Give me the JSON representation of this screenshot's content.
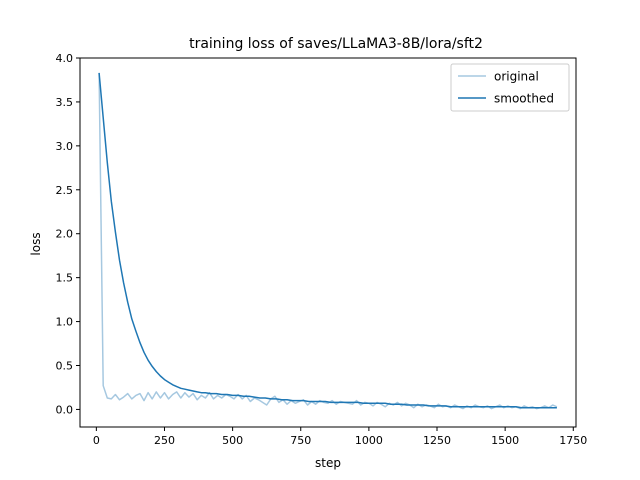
{
  "chart_data": {
    "type": "line",
    "title": "training loss of saves/LLaMA3-8B/lora/sft2",
    "xlabel": "step",
    "ylabel": "loss",
    "xlim": [
      -60,
      1760
    ],
    "ylim": [
      -0.2,
      4.0
    ],
    "xticks": [
      0,
      250,
      500,
      750,
      1000,
      1250,
      1500,
      1750
    ],
    "xtick_labels": [
      "0",
      "250",
      "500",
      "750",
      "1000",
      "1250",
      "1500",
      "1750"
    ],
    "yticks": [
      0.0,
      0.5,
      1.0,
      1.5,
      2.0,
      2.5,
      3.0,
      3.5,
      4.0
    ],
    "ytick_labels": [
      "0.0",
      "0.5",
      "1.0",
      "1.5",
      "2.0",
      "2.5",
      "3.0",
      "3.5",
      "4.0"
    ],
    "grid": false,
    "legend_position": "top-right",
    "series": [
      {
        "name": "original",
        "color": "#a6c8e0",
        "x": [
          10,
          25,
          40,
          55,
          70,
          85,
          100,
          115,
          130,
          145,
          160,
          175,
          190,
          205,
          220,
          235,
          250,
          265,
          280,
          295,
          310,
          325,
          340,
          355,
          370,
          385,
          400,
          415,
          430,
          445,
          460,
          475,
          490,
          505,
          520,
          535,
          550,
          565,
          580,
          595,
          610,
          625,
          640,
          655,
          670,
          685,
          700,
          715,
          730,
          745,
          760,
          775,
          790,
          805,
          820,
          835,
          850,
          865,
          880,
          895,
          910,
          925,
          940,
          955,
          970,
          985,
          1000,
          1015,
          1030,
          1045,
          1060,
          1075,
          1090,
          1105,
          1120,
          1135,
          1150,
          1165,
          1180,
          1195,
          1210,
          1225,
          1240,
          1255,
          1270,
          1285,
          1300,
          1315,
          1330,
          1345,
          1360,
          1375,
          1390,
          1405,
          1420,
          1435,
          1450,
          1465,
          1480,
          1495,
          1510,
          1525,
          1540,
          1555,
          1570,
          1585,
          1600,
          1615,
          1630,
          1645,
          1660,
          1675,
          1690
        ],
        "values": [
          3.83,
          0.27,
          0.13,
          0.12,
          0.17,
          0.11,
          0.14,
          0.18,
          0.12,
          0.16,
          0.18,
          0.1,
          0.19,
          0.12,
          0.2,
          0.13,
          0.19,
          0.12,
          0.17,
          0.2,
          0.13,
          0.19,
          0.14,
          0.18,
          0.11,
          0.16,
          0.13,
          0.19,
          0.12,
          0.16,
          0.13,
          0.17,
          0.15,
          0.12,
          0.17,
          0.12,
          0.16,
          0.09,
          0.13,
          0.11,
          0.08,
          0.05,
          0.12,
          0.15,
          0.08,
          0.11,
          0.06,
          0.1,
          0.07,
          0.09,
          0.11,
          0.05,
          0.09,
          0.06,
          0.1,
          0.08,
          0.07,
          0.1,
          0.06,
          0.09,
          0.08,
          0.07,
          0.06,
          0.1,
          0.05,
          0.08,
          0.07,
          0.04,
          0.08,
          0.06,
          0.03,
          0.07,
          0.05,
          0.08,
          0.04,
          0.07,
          0.05,
          0.02,
          0.06,
          0.03,
          0.05,
          0.04,
          0.02,
          0.06,
          0.03,
          0.04,
          0.02,
          0.05,
          0.03,
          0.01,
          0.04,
          0.02,
          0.05,
          0.03,
          0.02,
          0.04,
          0.01,
          0.03,
          0.05,
          0.02,
          0.04,
          0.02,
          0.03,
          0.01,
          0.04,
          0.02,
          0.03,
          0.01,
          0.02,
          0.04,
          0.02,
          0.05,
          0.03
        ]
      },
      {
        "name": "smoothed",
        "color": "#1f77b4",
        "x": [
          10,
          25,
          40,
          55,
          70,
          85,
          100,
          115,
          130,
          145,
          160,
          175,
          190,
          205,
          220,
          235,
          250,
          265,
          280,
          295,
          310,
          325,
          340,
          355,
          370,
          385,
          400,
          420,
          440,
          460,
          480,
          500,
          520,
          540,
          560,
          580,
          600,
          620,
          640,
          660,
          680,
          700,
          720,
          740,
          760,
          780,
          800,
          820,
          840,
          860,
          880,
          900,
          920,
          940,
          960,
          980,
          1000,
          1020,
          1040,
          1060,
          1080,
          1100,
          1120,
          1140,
          1160,
          1180,
          1200,
          1220,
          1240,
          1260,
          1280,
          1300,
          1320,
          1340,
          1360,
          1380,
          1400,
          1420,
          1440,
          1460,
          1480,
          1500,
          1520,
          1540,
          1560,
          1580,
          1600,
          1620,
          1640,
          1660,
          1680,
          1690
        ],
        "values": [
          3.83,
          3.32,
          2.81,
          2.37,
          2.02,
          1.7,
          1.44,
          1.22,
          1.03,
          0.89,
          0.76,
          0.65,
          0.56,
          0.49,
          0.43,
          0.38,
          0.34,
          0.31,
          0.28,
          0.26,
          0.24,
          0.23,
          0.22,
          0.21,
          0.2,
          0.19,
          0.19,
          0.18,
          0.18,
          0.17,
          0.17,
          0.16,
          0.16,
          0.15,
          0.15,
          0.14,
          0.13,
          0.13,
          0.12,
          0.12,
          0.11,
          0.11,
          0.1,
          0.1,
          0.1,
          0.09,
          0.09,
          0.09,
          0.09,
          0.08,
          0.08,
          0.08,
          0.08,
          0.08,
          0.08,
          0.07,
          0.07,
          0.07,
          0.07,
          0.07,
          0.06,
          0.06,
          0.06,
          0.05,
          0.05,
          0.05,
          0.05,
          0.04,
          0.04,
          0.04,
          0.04,
          0.03,
          0.03,
          0.03,
          0.03,
          0.03,
          0.03,
          0.03,
          0.03,
          0.03,
          0.03,
          0.03,
          0.03,
          0.03,
          0.02,
          0.02,
          0.02,
          0.02,
          0.02,
          0.02,
          0.02,
          0.02
        ]
      }
    ]
  }
}
